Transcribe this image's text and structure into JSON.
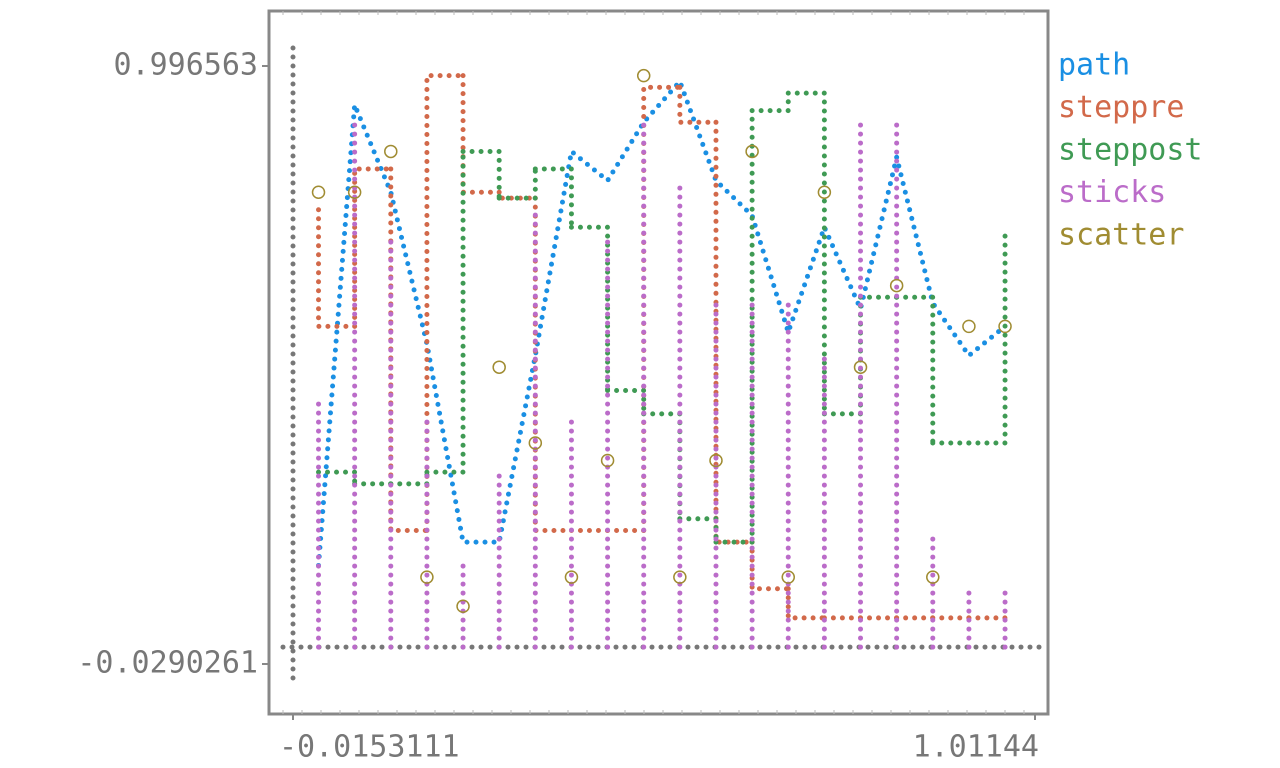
{
  "chart_data": {
    "type": "line",
    "x": [
      0.02,
      0.07,
      0.12,
      0.17,
      0.22,
      0.27,
      0.32,
      0.37,
      0.42,
      0.47,
      0.52,
      0.57,
      0.62,
      0.67,
      0.72,
      0.77,
      0.82,
      0.87,
      0.92,
      0.97
    ],
    "series": [
      {
        "name": "path",
        "kind": "path",
        "color": "#1a8fe3",
        "values": [
          0.14,
          0.93,
          0.78,
          0.52,
          0.18,
          0.18,
          0.5,
          0.85,
          0.8,
          0.9,
          0.97,
          0.8,
          0.74,
          0.54,
          0.72,
          0.58,
          0.84,
          0.59,
          0.5,
          0.55
        ]
      },
      {
        "name": "steppre",
        "kind": "steppre",
        "color": "#d2694a",
        "values": [
          0.75,
          0.55,
          0.82,
          0.2,
          0.98,
          0.78,
          0.77,
          0.2,
          0.2,
          0.2,
          0.96,
          0.9,
          0.18,
          0.1,
          0.05,
          0.05,
          0.05,
          0.05,
          0.05,
          0.05
        ]
      },
      {
        "name": "steppost",
        "kind": "steppost",
        "color": "#3f9a54",
        "values": [
          0.3,
          0.28,
          0.28,
          0.3,
          0.85,
          0.77,
          0.82,
          0.72,
          0.44,
          0.4,
          0.22,
          0.18,
          0.92,
          0.95,
          0.4,
          0.6,
          0.6,
          0.35,
          0.35,
          0.72
        ]
      },
      {
        "name": "sticks",
        "kind": "sticks",
        "color": "#bb6cc9",
        "values": [
          0.42,
          0.9,
          0.7,
          0.4,
          0.15,
          0.3,
          0.75,
          0.4,
          0.7,
          0.9,
          0.8,
          0.6,
          0.6,
          0.6,
          0.5,
          0.9,
          0.9,
          0.2,
          0.1,
          0.1
        ]
      },
      {
        "name": "scatter",
        "kind": "scatter",
        "color": "#a08c32",
        "values": [
          0.78,
          0.78,
          0.85,
          0.12,
          0.07,
          0.48,
          0.35,
          0.12,
          0.32,
          0.98,
          0.12,
          0.32,
          0.85,
          0.12,
          0.78,
          0.48,
          0.62,
          0.12,
          0.55,
          0.55
        ]
      }
    ],
    "xlim": [
      -0.0153111,
      1.01144
    ],
    "xticks": [
      -0.0153111,
      1.01144
    ],
    "ylim": [
      -0.0290261,
      0.996563
    ],
    "yticks": [
      -0.0290261,
      0.996563
    ],
    "axis_color": "#777777"
  }
}
